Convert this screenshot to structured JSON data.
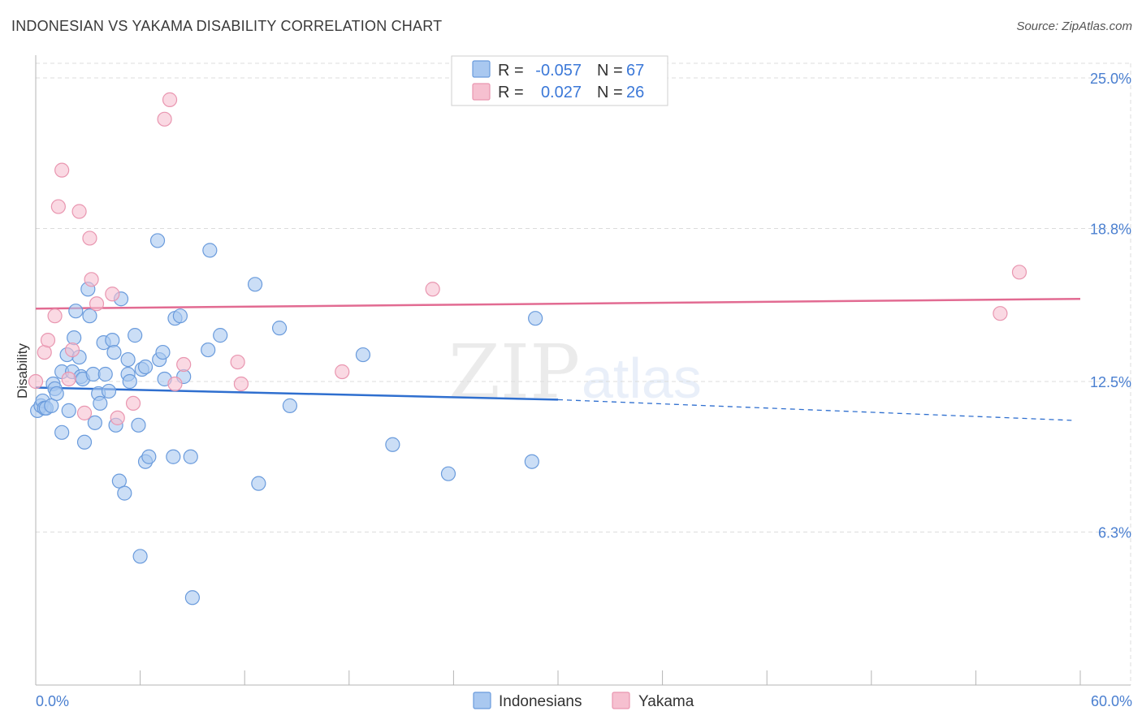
{
  "title": "INDONESIAN VS YAKAMA DISABILITY CORRELATION CHART",
  "source": "Source: ZipAtlas.com",
  "watermark": {
    "zip": "ZIP",
    "atlas": "atlas"
  },
  "colors": {
    "indonesians_fill": "#a9c8f0",
    "indonesians_stroke": "#6a9bdc",
    "indonesians_line": "#2f6fcf",
    "yakama_fill": "#f6c0d0",
    "yakama_stroke": "#e996b0",
    "yakama_line": "#e26b92",
    "tick_text": "#4a7fd0",
    "grid": "#dcdcdc"
  },
  "legend": {
    "rows": [
      {
        "r_label": "R =",
        "r_value": "-0.057",
        "n_label": "N =",
        "n_value": "67"
      },
      {
        "r_label": "R =",
        "r_value": "0.027",
        "n_label": "N =",
        "n_value": "26"
      }
    ]
  },
  "chart_data": {
    "type": "scatter",
    "title": "INDONESIAN VS YAKAMA DISABILITY CORRELATION CHART",
    "xlabel": "",
    "ylabel": "Disability",
    "xlim": [
      0,
      60
    ],
    "ylim": [
      0,
      25.6
    ],
    "x_tick_labels": [
      "0.0%",
      "60.0%"
    ],
    "y_ticks": [
      {
        "value": 6.3,
        "label": "6.3%"
      },
      {
        "value": 12.5,
        "label": "12.5%"
      },
      {
        "value": 18.8,
        "label": "18.8%"
      },
      {
        "value": 25.0,
        "label": "25.0%"
      }
    ],
    "grid": true,
    "series": [
      {
        "name": "Indonesians",
        "r": -0.057,
        "n": 67,
        "trend": {
          "x0": 0,
          "y0": 12.25,
          "x1": 30,
          "y1": 11.75,
          "dashed_to_x": 59.5,
          "dashed_to_y": 10.9
        },
        "points": [
          [
            0.1,
            11.3
          ],
          [
            0.3,
            11.5
          ],
          [
            0.4,
            11.7
          ],
          [
            0.5,
            11.4
          ],
          [
            0.6,
            11.4
          ],
          [
            0.9,
            11.5
          ],
          [
            1.0,
            12.4
          ],
          [
            1.1,
            12.2
          ],
          [
            1.2,
            12.0
          ],
          [
            1.5,
            12.9
          ],
          [
            1.5,
            10.4
          ],
          [
            1.8,
            13.6
          ],
          [
            1.9,
            11.3
          ],
          [
            2.1,
            12.9
          ],
          [
            2.2,
            14.3
          ],
          [
            2.3,
            15.4
          ],
          [
            2.5,
            13.5
          ],
          [
            2.6,
            12.7
          ],
          [
            2.7,
            12.6
          ],
          [
            2.8,
            10.0
          ],
          [
            3.0,
            16.3
          ],
          [
            3.1,
            15.2
          ],
          [
            3.3,
            12.8
          ],
          [
            3.4,
            10.8
          ],
          [
            3.6,
            12.0
          ],
          [
            3.7,
            11.6
          ],
          [
            3.9,
            14.1
          ],
          [
            4.0,
            12.8
          ],
          [
            4.2,
            12.1
          ],
          [
            4.4,
            14.2
          ],
          [
            4.5,
            13.7
          ],
          [
            4.6,
            10.7
          ],
          [
            4.8,
            8.4
          ],
          [
            4.9,
            15.9
          ],
          [
            5.1,
            7.9
          ],
          [
            5.3,
            13.4
          ],
          [
            5.3,
            12.8
          ],
          [
            5.4,
            12.5
          ],
          [
            5.7,
            14.4
          ],
          [
            5.9,
            10.7
          ],
          [
            6.0,
            5.3
          ],
          [
            6.1,
            13.0
          ],
          [
            6.3,
            9.2
          ],
          [
            6.3,
            13.1
          ],
          [
            6.5,
            9.4
          ],
          [
            7.0,
            18.3
          ],
          [
            7.1,
            13.4
          ],
          [
            7.3,
            13.7
          ],
          [
            7.4,
            12.6
          ],
          [
            7.9,
            9.4
          ],
          [
            8.0,
            15.1
          ],
          [
            8.3,
            15.2
          ],
          [
            8.5,
            12.7
          ],
          [
            8.9,
            9.4
          ],
          [
            9.0,
            3.6
          ],
          [
            9.9,
            13.8
          ],
          [
            10.0,
            17.9
          ],
          [
            10.6,
            14.4
          ],
          [
            12.6,
            16.5
          ],
          [
            12.8,
            8.3
          ],
          [
            14.0,
            14.7
          ],
          [
            14.6,
            11.5
          ],
          [
            18.8,
            13.6
          ],
          [
            20.5,
            9.9
          ],
          [
            23.7,
            8.7
          ],
          [
            28.5,
            9.2
          ],
          [
            28.7,
            15.1
          ]
        ]
      },
      {
        "name": "Yakama",
        "r": 0.027,
        "n": 26,
        "trend": {
          "x0": 0,
          "y0": 15.5,
          "x1": 60,
          "y1": 15.9
        },
        "points": [
          [
            0.0,
            12.5
          ],
          [
            0.5,
            13.7
          ],
          [
            0.7,
            14.2
          ],
          [
            1.1,
            15.2
          ],
          [
            1.3,
            19.7
          ],
          [
            1.5,
            21.2
          ],
          [
            1.9,
            12.6
          ],
          [
            2.1,
            13.8
          ],
          [
            2.5,
            19.5
          ],
          [
            2.8,
            11.2
          ],
          [
            3.1,
            18.4
          ],
          [
            3.2,
            16.7
          ],
          [
            3.5,
            15.7
          ],
          [
            4.4,
            16.1
          ],
          [
            4.7,
            11.0
          ],
          [
            5.6,
            11.6
          ],
          [
            7.4,
            23.3
          ],
          [
            7.7,
            24.1
          ],
          [
            8.0,
            12.4
          ],
          [
            8.5,
            13.2
          ],
          [
            11.6,
            13.3
          ],
          [
            11.8,
            12.4
          ],
          [
            17.6,
            12.9
          ],
          [
            22.8,
            16.3
          ],
          [
            55.4,
            15.3
          ],
          [
            56.5,
            17.0
          ]
        ]
      }
    ]
  },
  "bottom_legend": [
    "Indonesians",
    "Yakama"
  ]
}
